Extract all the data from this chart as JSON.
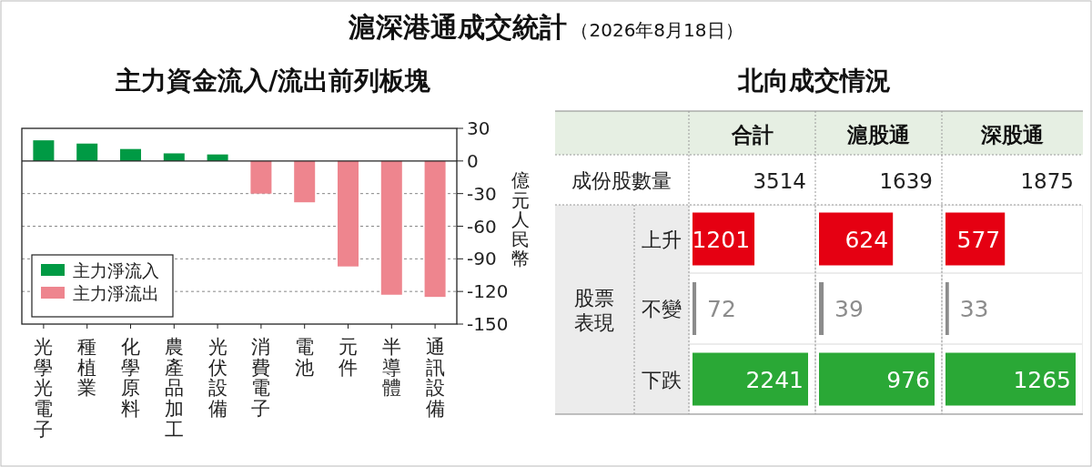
{
  "chart_data": [
    {
      "type": "other",
      "title": "滬深港通成交統計",
      "subtitle": "（2026年8月18日）"
    },
    {
      "type": "bar",
      "title": "主力資金流入/流出前列板塊",
      "ylabel": "億元人民幣",
      "categories": [
        "光學光電子",
        "種植業",
        "化學原料",
        "農產品加工",
        "光伏設備",
        "消費電子",
        "電池",
        "元件",
        "半導體",
        "通訊設備"
      ],
      "series": [
        {
          "name": "主力淨流入",
          "color": "#009a44",
          "values": [
            19,
            16,
            11,
            7,
            6,
            null,
            null,
            null,
            null,
            null
          ]
        },
        {
          "name": "主力淨流出",
          "color": "#ee858e",
          "values": [
            null,
            null,
            null,
            null,
            null,
            -30,
            -38,
            -97,
            -123,
            -125
          ]
        }
      ],
      "ylim": [
        -150,
        30
      ],
      "yticks": [
        30,
        0,
        -30,
        -60,
        -90,
        -120,
        -150
      ],
      "grid": "y",
      "legend": "bottom left"
    },
    {
      "type": "other",
      "title": "北向成交情況",
      "annotations": [
        "成份股數量",
        "股票表現"
      ]
    },
    {
      "type": "bar",
      "orientation": "horizontal",
      "title": "合計",
      "annotations": [
        "3514"
      ],
      "categories": [
        "上升",
        "不變",
        "下跌"
      ],
      "values": [
        1201,
        72,
        2241
      ],
      "colors": [
        "#e50012",
        "#8c8c8c",
        "#2aa836"
      ],
      "data_labels": true,
      "tick_labels": "y"
    },
    {
      "type": "bar",
      "orientation": "horizontal",
      "title": "滬股通",
      "annotations": [
        "1639"
      ],
      "categories": [
        "上升",
        "不變",
        "下跌"
      ],
      "values": [
        624,
        39,
        976
      ],
      "colors": [
        "#e50012",
        "#8c8c8c",
        "#2aa836"
      ],
      "data_labels": true,
      "tick_labels": false
    },
    {
      "type": "bar",
      "orientation": "horizontal",
      "title": "深股通",
      "annotations": [
        "1875"
      ],
      "categories": [
        "上升",
        "不變",
        "下跌"
      ],
      "values": [
        577,
        33,
        1265
      ],
      "colors": [
        "#e50012",
        "#8c8c8c",
        "#2aa836"
      ],
      "data_labels": true,
      "tick_labels": false
    }
  ]
}
